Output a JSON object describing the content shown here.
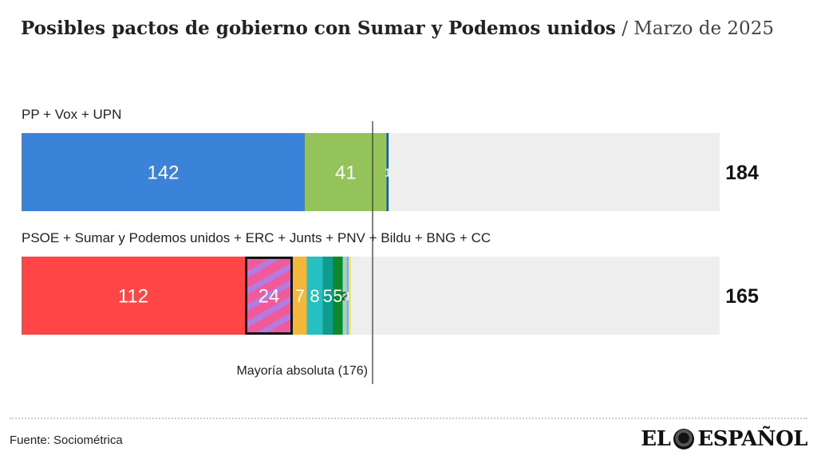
{
  "title": "Posibles pactos de gobierno con Sumar y Podemos unidos",
  "separator": "/",
  "subtitle": "Marzo de 2025",
  "source": "Fuente: Sociométrica",
  "logo": {
    "left": "EL",
    "right": "ESPAÑOL",
    "icon": "lion-head-icon"
  },
  "chart_data": {
    "type": "bar",
    "orientation": "horizontal",
    "stacked": true,
    "xlim": [
      0,
      350
    ],
    "majority": {
      "value": 176,
      "label": "Mayoría absoluta (176)"
    },
    "background_color": "#eeeeee",
    "bars": [
      {
        "label": "PP + Vox + UPN",
        "total": 184,
        "segments": [
          {
            "value": 142,
            "label": "142",
            "color": "#3b82d9"
          },
          {
            "value": 41,
            "label": "41",
            "color": "#93c35a"
          },
          {
            "value": 1,
            "label": "1",
            "color": "#1a56b8"
          }
        ]
      },
      {
        "label": "PSOE + Sumar y Podemos unidos + ERC + Junts + PNV + Bildu + BNG + CC",
        "total": 165,
        "segments": [
          {
            "value": 112,
            "label": "112",
            "color": "#ff4545"
          },
          {
            "value": 24,
            "label": "24",
            "color": "#ee5a9a",
            "pattern": "striped",
            "stripe_color": "#b57be0",
            "outline": "#111111"
          },
          {
            "value": 7,
            "label": "7",
            "color": "#f4b73a"
          },
          {
            "value": 8,
            "label": "8",
            "color": "#27c0c0"
          },
          {
            "value": 5,
            "label": "5",
            "color": "#0f9b8e"
          },
          {
            "value": 5,
            "label": "5",
            "color": "#0e8a2e"
          },
          {
            "value": 2,
            "label": "2",
            "color": "#a7d3c2"
          },
          {
            "value": 1,
            "label": "1",
            "color": "#7fb0e0"
          },
          {
            "value": 1,
            "label": "",
            "color": "#f5e04a"
          }
        ]
      }
    ]
  }
}
